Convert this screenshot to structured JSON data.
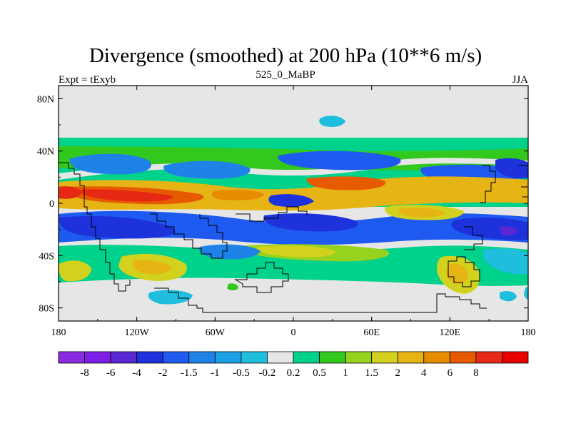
{
  "title": "Divergence (smoothed) at 200 hPa (10**6 m/s)",
  "subtitle": "525_0_MaBP",
  "left_string": "Expt = tExyb",
  "right_string": "JJA",
  "map": {
    "lon_range": [
      -180,
      180
    ],
    "lat_range": [
      -90,
      90
    ],
    "x_ticks": [
      {
        "value": -180,
        "label": "180"
      },
      {
        "value": -120,
        "label": "120W"
      },
      {
        "value": -60,
        "label": "60W"
      },
      {
        "value": 0,
        "label": "0"
      },
      {
        "value": 60,
        "label": "60E"
      },
      {
        "value": 120,
        "label": "120E"
      },
      {
        "value": 180,
        "label": "180"
      }
    ],
    "y_ticks": [
      {
        "value": 80,
        "label": "80N"
      },
      {
        "value": 40,
        "label": "40N"
      },
      {
        "value": 0,
        "label": "0"
      },
      {
        "value": -40,
        "label": "40S"
      },
      {
        "value": -80,
        "label": "80S"
      }
    ],
    "colors": {
      "missing": "#e6e6e6",
      "coastline": "#000000"
    }
  },
  "colorbar": {
    "colors": [
      "#8a2be2",
      "#7e1ee6",
      "#5a28d2",
      "#1e32dc",
      "#1e5af0",
      "#1e82e6",
      "#1ea0e6",
      "#1ebedc",
      "#e6e6e6",
      "#00d28c",
      "#32c81e",
      "#96d21e",
      "#d2d21e",
      "#e6b414",
      "#e68c00",
      "#e65a00",
      "#e62814",
      "#e60000"
    ],
    "labels": [
      "-8",
      "-6",
      "-4",
      "-2",
      "-1.5",
      "-1",
      "-0.5",
      "-0.2",
      "0.2",
      "0.5",
      "1",
      "1.5",
      "2",
      "4",
      "6",
      "8"
    ]
  }
}
